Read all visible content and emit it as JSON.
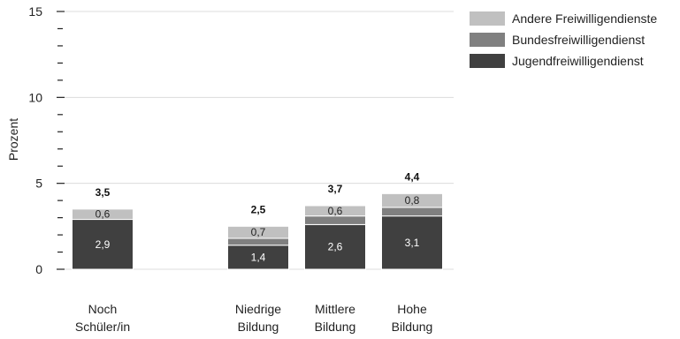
{
  "chart_data": {
    "type": "bar",
    "stacked": true,
    "ylabel": "Prozent",
    "ylim": [
      0,
      15
    ],
    "y_major_ticks": [
      0,
      5,
      10,
      15
    ],
    "y_minor_step": 1,
    "grid": "horizontal",
    "legend_position": "top-right",
    "categories": [
      [
        "Noch",
        "Schüler/in"
      ],
      [
        "Niedrige",
        "Bildung"
      ],
      [
        "Mittlere",
        "Bildung"
      ],
      [
        "Hohe",
        "Bildung"
      ]
    ],
    "series": [
      {
        "name": "Jugendfreiwilligendienst",
        "color": "#404040",
        "label_color": "#ffffff",
        "values": [
          2.9,
          1.4,
          2.6,
          3.1
        ],
        "labels": [
          "2,9",
          "1,4",
          "2,6",
          "3,1"
        ]
      },
      {
        "name": "Bundesfreiwilligendienst",
        "color": "#808080",
        "label_color": "#ffffff",
        "values": [
          0,
          0.4,
          0.5,
          0.5
        ],
        "labels": [
          "",
          "",
          "",
          ""
        ]
      },
      {
        "name": "Andere Freiwilligendienste",
        "color": "#c0c0c0",
        "label_color": "#222222",
        "values": [
          0.6,
          0.7,
          0.6,
          0.8
        ],
        "labels": [
          "0,6",
          "0,7",
          "0,6",
          "0,8"
        ]
      }
    ],
    "totals": [
      "3,5",
      "2,5",
      "3,7",
      "4,4"
    ]
  }
}
